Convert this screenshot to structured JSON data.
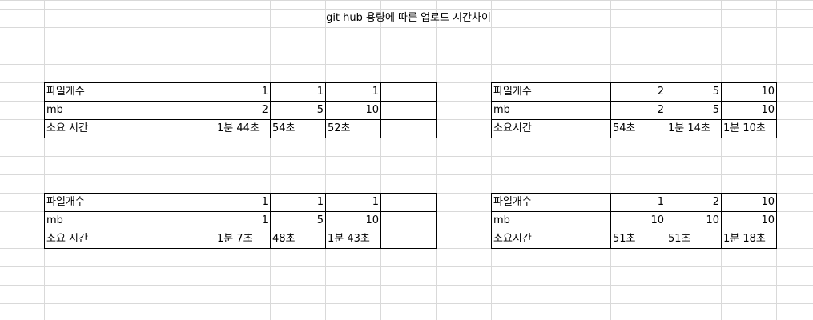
{
  "title": "git hub 용량에 따른 업로드 시간차이",
  "tables": [
    {
      "rows": [
        {
          "label": "파일개수",
          "values": [
            "1",
            "1",
            "1",
            ""
          ]
        },
        {
          "label": "mb",
          "values": [
            "2",
            "5",
            "10",
            ""
          ]
        },
        {
          "label": "소요 시간",
          "values": [
            "1분 44초",
            "54초",
            "52초",
            ""
          ]
        }
      ]
    },
    {
      "rows": [
        {
          "label": "파일개수",
          "values": [
            "2",
            "5",
            "10"
          ]
        },
        {
          "label": "mb",
          "values": [
            "2",
            "5",
            "10"
          ]
        },
        {
          "label": "소요시간",
          "values": [
            "54초",
            "1분 14초",
            "1분 10초"
          ]
        }
      ]
    },
    {
      "rows": [
        {
          "label": "파일개수",
          "values": [
            "1",
            "1",
            "1",
            ""
          ]
        },
        {
          "label": "mb",
          "values": [
            "1",
            "5",
            "10",
            ""
          ]
        },
        {
          "label": "소요 시간",
          "values": [
            "1분 7초",
            "48초",
            "1분 43초",
            ""
          ]
        }
      ]
    },
    {
      "rows": [
        {
          "label": "파일개수",
          "values": [
            "1",
            "2",
            "10"
          ]
        },
        {
          "label": "mb",
          "values": [
            "10",
            "10",
            "10"
          ]
        },
        {
          "label": "소요시간",
          "values": [
            "51초",
            "51초",
            "1분 18초"
          ]
        }
      ]
    }
  ]
}
